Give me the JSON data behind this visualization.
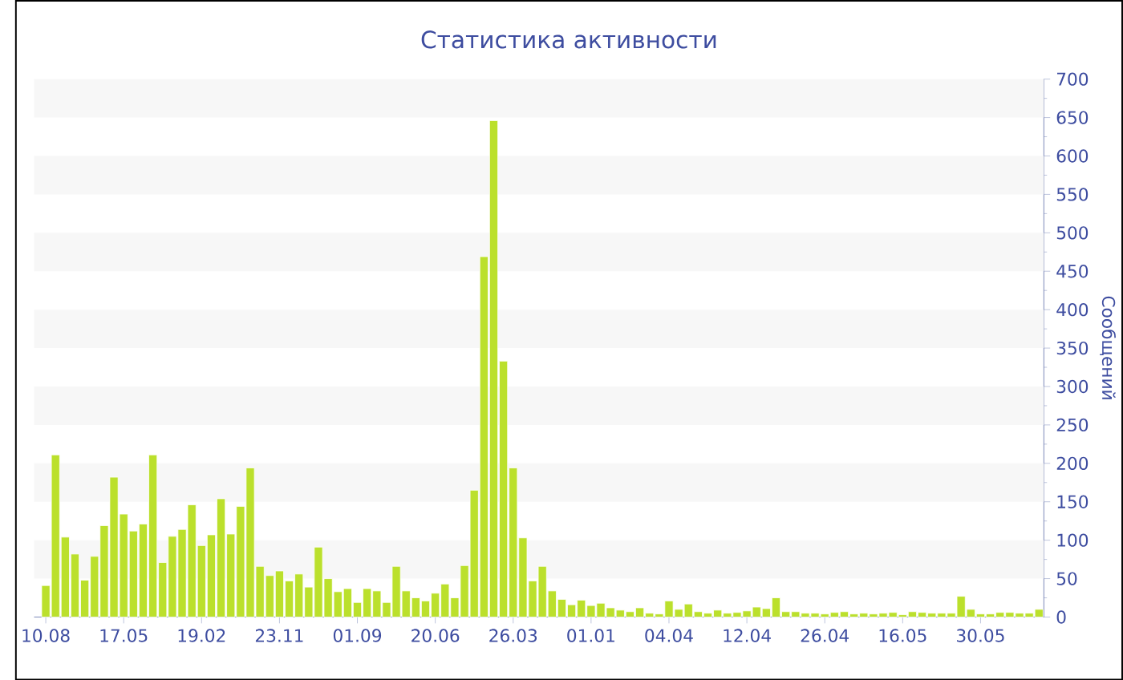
{
  "chart_data": {
    "type": "bar",
    "title": "Статистика активности",
    "ylabel": "Сообщений",
    "categories": [
      "10.08",
      null,
      null,
      null,
      null,
      null,
      null,
      null,
      "17.05",
      null,
      null,
      null,
      null,
      null,
      null,
      null,
      "19.02",
      null,
      null,
      null,
      null,
      null,
      null,
      null,
      "23.11",
      null,
      null,
      null,
      null,
      null,
      null,
      null,
      "01.09",
      null,
      null,
      null,
      null,
      null,
      null,
      null,
      "20.06",
      null,
      null,
      null,
      null,
      null,
      null,
      null,
      "26.03",
      null,
      null,
      null,
      null,
      null,
      null,
      null,
      "01.01",
      null,
      null,
      null,
      null,
      null,
      null,
      null,
      "04.04",
      null,
      null,
      null,
      null,
      null,
      null,
      null,
      "12.04",
      null,
      null,
      null,
      null,
      null,
      null,
      null,
      "26.04",
      null,
      null,
      null,
      null,
      null,
      null,
      null,
      "16.05",
      null,
      null,
      null,
      null,
      null,
      null,
      null,
      "30.05",
      null,
      null,
      null,
      null,
      null,
      null
    ],
    "values": [
      41,
      211,
      104,
      82,
      48,
      79,
      119,
      182,
      134,
      112,
      121,
      211,
      71,
      105,
      114,
      146,
      93,
      107,
      154,
      108,
      144,
      194,
      66,
      54,
      60,
      47,
      56,
      39,
      91,
      50,
      33,
      37,
      19,
      37,
      34,
      19,
      66,
      34,
      25,
      21,
      31,
      43,
      25,
      67,
      165,
      469,
      646,
      333,
      194,
      103,
      47,
      66,
      34,
      23,
      16,
      22,
      15,
      18,
      12,
      9,
      7,
      12,
      5,
      4,
      21,
      10,
      17,
      7,
      5,
      9,
      5,
      6,
      8,
      13,
      11,
      25,
      7,
      7,
      5,
      5,
      4,
      6,
      7,
      4,
      5,
      4,
      5,
      6,
      3,
      7,
      6,
      5,
      5,
      5,
      27,
      10,
      4,
      4,
      6,
      6,
      5,
      5,
      10
    ],
    "color": "#bbe02c",
    "ylim": [
      0,
      700
    ],
    "yticks": [
      0,
      50,
      100,
      150,
      200,
      250,
      300,
      350,
      400,
      450,
      500,
      550,
      600,
      650,
      700
    ],
    "bands": [
      {
        "axis": "y",
        "from": 50,
        "to": 100,
        "color": "#f7f7f7"
      },
      {
        "axis": "y",
        "from": 150,
        "to": 200,
        "color": "#f7f7f7"
      },
      {
        "axis": "y",
        "from": 250,
        "to": 300,
        "color": "#f7f7f7"
      },
      {
        "axis": "y",
        "from": 350,
        "to": 400,
        "color": "#f7f7f7"
      },
      {
        "axis": "y",
        "from": 450,
        "to": 500,
        "color": "#f7f7f7"
      },
      {
        "axis": "y",
        "from": 550,
        "to": 600,
        "color": "#f7f7f7"
      },
      {
        "axis": "y",
        "from": 650,
        "to": 700,
        "color": "#f7f7f7"
      }
    ]
  }
}
